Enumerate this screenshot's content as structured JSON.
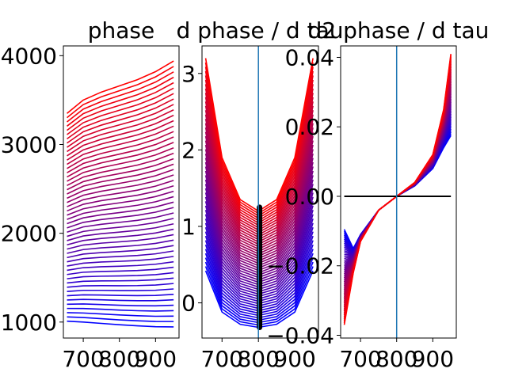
{
  "figure": {
    "background": "#ffffff",
    "curve_color_start": "#0000ff",
    "curve_color_end": "#ff0000",
    "vline_color": "#1f77b4",
    "zero_line_color": "#000000",
    "black_mark_color": "#000000"
  },
  "chart_data": [
    {
      "id": "panel-phase",
      "type": "line",
      "title": "phase",
      "xlabel": "",
      "ylabel": "",
      "xlim": [
        645,
        965
      ],
      "ylim": [
        820,
        4110
      ],
      "xticks": [
        700,
        800,
        900
      ],
      "xtick_labels": [
        "700",
        "800",
        "900"
      ],
      "yticks": [
        1000,
        2000,
        3000,
        4000
      ],
      "ytick_labels": [
        "1000",
        "2000",
        "3000",
        "4000"
      ],
      "grid": false,
      "legend": "none",
      "family": {
        "count": 50,
        "x": [
          655,
          700,
          750,
          800,
          850,
          900,
          950
        ],
        "first_curve_y": [
          1010,
          1000,
          985,
          970,
          958,
          948,
          945
        ],
        "last_curve_y": [
          3350,
          3500,
          3590,
          3660,
          3730,
          3820,
          3940
        ]
      }
    },
    {
      "id": "panel-dphase",
      "type": "line",
      "title": "d phase / d tau",
      "xlabel": "",
      "ylabel": "",
      "xlim": [
        645,
        965
      ],
      "ylim": [
        -0.46,
        3.36
      ],
      "xticks": [
        700,
        800,
        900
      ],
      "xtick_labels": [
        "700",
        "800",
        "900"
      ],
      "yticks": [
        0,
        1,
        2,
        3
      ],
      "ytick_labels": [
        "0",
        "1",
        "2",
        "3"
      ],
      "grid": false,
      "legend": "none",
      "vertical_line_x": 800,
      "black_segment": {
        "x": 803,
        "y_from": -0.32,
        "y_to": 1.25
      },
      "family": {
        "count": 50,
        "x": [
          655,
          700,
          750,
          800,
          850,
          900,
          950
        ],
        "first_curve_y": [
          0.42,
          -0.12,
          -0.28,
          -0.32,
          -0.28,
          -0.12,
          0.42
        ],
        "last_curve_y": [
          3.2,
          1.9,
          1.35,
          1.2,
          1.35,
          1.9,
          3.2
        ]
      }
    },
    {
      "id": "panel-d2phase",
      "type": "line",
      "title": "d2 phase / d tau",
      "xlabel": "",
      "ylabel": "",
      "xlim": [
        645,
        965
      ],
      "ylim": [
        -0.0408,
        0.0433
      ],
      "xticks": [
        700,
        800,
        900
      ],
      "xtick_labels": [
        "700",
        "800",
        "900"
      ],
      "yticks": [
        -0.04,
        -0.02,
        0.0,
        0.02,
        0.04
      ],
      "ytick_labels": [
        "−0.04",
        "−0.02",
        "0.00",
        "0.02",
        "0.04"
      ],
      "grid": false,
      "legend": "none",
      "vertical_line_x": 800,
      "zero_line": {
        "y": 0.0,
        "x_from": 655,
        "x_to": 950
      },
      "family": {
        "count": 50,
        "x": [
          655,
          680,
          700,
          750,
          800,
          850,
          900,
          930,
          950
        ],
        "first_curve_y": [
          -0.0095,
          -0.015,
          -0.011,
          -0.004,
          0.0,
          0.003,
          0.008,
          0.014,
          0.0175
        ],
        "last_curve_y": [
          -0.037,
          -0.022,
          -0.013,
          -0.004,
          0.0,
          0.004,
          0.012,
          0.025,
          0.041
        ]
      }
    }
  ]
}
